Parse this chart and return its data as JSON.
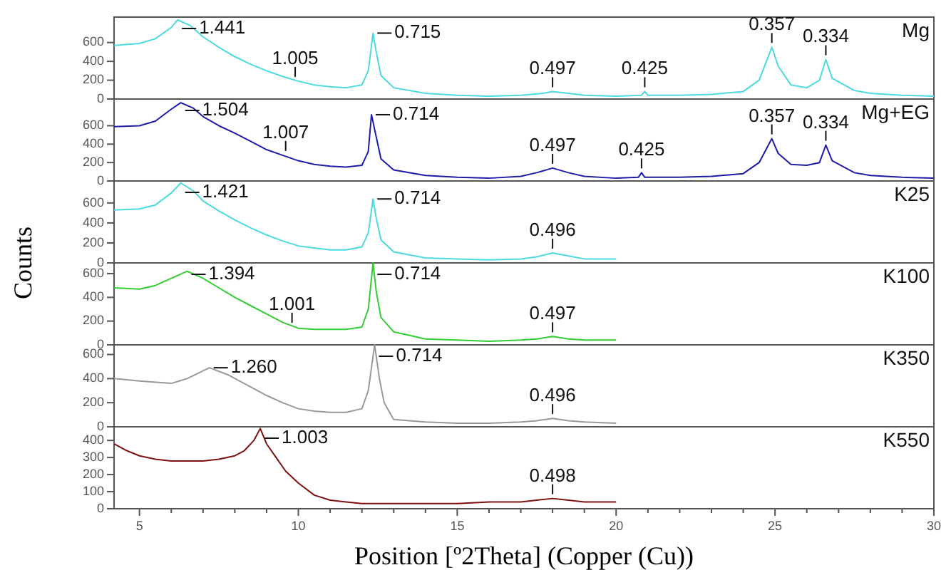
{
  "chart_data": [
    {
      "type": "line",
      "xlim": [
        4.2,
        30
      ],
      "ylim": [
        0,
        870
      ],
      "yticks": [
        0,
        200,
        400,
        600
      ],
      "tick_labels": "y",
      "series": [
        {
          "name": "Mg",
          "color": "#4dd9e0",
          "x": [
            4.2,
            5,
            5.5,
            6,
            6.2,
            6.6,
            7,
            7.5,
            8,
            8.5,
            9,
            9.5,
            10,
            10.5,
            11,
            11.5,
            12,
            12.2,
            12.35,
            12.45,
            12.6,
            13,
            14,
            15,
            16,
            17,
            17.7,
            18,
            18.5,
            19,
            20,
            20.8,
            20.9,
            21,
            22,
            23,
            24,
            24.5,
            24.9,
            25.1,
            25.5,
            26,
            26.4,
            26.6,
            26.8,
            27.5,
            28,
            29,
            30
          ],
          "values": [
            570,
            590,
            640,
            760,
            840,
            780,
            660,
            550,
            450,
            370,
            300,
            240,
            190,
            150,
            130,
            120,
            150,
            300,
            700,
            500,
            250,
            120,
            60,
            40,
            30,
            40,
            60,
            80,
            60,
            40,
            30,
            40,
            80,
            40,
            40,
            50,
            80,
            200,
            550,
            350,
            150,
            120,
            200,
            420,
            220,
            90,
            60,
            40,
            30
          ]
        }
      ],
      "annotations": [
        {
          "text": "1.441",
          "x": 6.2,
          "y": 840
        },
        {
          "text": "1.005",
          "x": 9.9,
          "y": 190
        },
        {
          "text": "0.715",
          "x": 12.35,
          "y": 700
        },
        {
          "text": "0.497",
          "x": 18,
          "y": 80
        },
        {
          "text": "0.425",
          "x": 20.9,
          "y": 80
        },
        {
          "text": "0.357",
          "x": 24.9,
          "y": 550
        },
        {
          "text": "0.334",
          "x": 26.6,
          "y": 420
        }
      ]
    },
    {
      "type": "line",
      "xlim": [
        4.2,
        30
      ],
      "ylim": [
        0,
        890
      ],
      "yticks": [
        0,
        200,
        400,
        600
      ],
      "tick_labels": "y",
      "series": [
        {
          "name": "Mg+EG",
          "color": "#1c1ca8",
          "x": [
            4.2,
            5,
            5.5,
            6,
            6.3,
            6.7,
            7,
            7.5,
            8,
            8.5,
            9,
            9.5,
            10,
            10.5,
            11,
            11.5,
            12,
            12.2,
            12.3,
            12.45,
            12.6,
            13,
            14,
            15,
            16,
            17,
            17.5,
            18,
            18.5,
            19,
            20,
            20.7,
            20.8,
            20.9,
            22,
            23,
            24,
            24.5,
            24.9,
            25.1,
            25.5,
            26,
            26.4,
            26.6,
            26.8,
            27.5,
            28,
            29,
            30
          ],
          "values": [
            590,
            600,
            650,
            780,
            850,
            790,
            700,
            600,
            520,
            430,
            340,
            280,
            220,
            180,
            160,
            150,
            170,
            320,
            720,
            480,
            240,
            120,
            60,
            40,
            30,
            50,
            90,
            140,
            90,
            50,
            30,
            40,
            90,
            40,
            40,
            50,
            80,
            200,
            460,
            300,
            180,
            170,
            200,
            390,
            220,
            90,
            60,
            40,
            30
          ]
        }
      ],
      "annotations": [
        {
          "text": "1.504",
          "x": 6.3,
          "y": 850
        },
        {
          "text": "1.007",
          "x": 9.6,
          "y": 280
        },
        {
          "text": "0.714",
          "x": 12.3,
          "y": 720
        },
        {
          "text": "0.497",
          "x": 18,
          "y": 140
        },
        {
          "text": "0.425",
          "x": 20.8,
          "y": 90
        },
        {
          "text": "0.357",
          "x": 24.9,
          "y": 460
        },
        {
          "text": "0.334",
          "x": 26.6,
          "y": 390
        }
      ]
    },
    {
      "type": "line",
      "xlim": [
        4.2,
        30
      ],
      "ylim": [
        0,
        820
      ],
      "yticks": [
        0,
        200,
        400,
        600
      ],
      "tick_labels": "y",
      "series": [
        {
          "name": "K25",
          "color": "#4dd9e0",
          "x": [
            4.2,
            5,
            5.5,
            6,
            6.3,
            6.7,
            7,
            7.5,
            8,
            8.5,
            9,
            9.5,
            10,
            10.5,
            11,
            11.5,
            12,
            12.2,
            12.35,
            12.45,
            12.6,
            13,
            14,
            15,
            16,
            17,
            17.5,
            18,
            18.5,
            19,
            20
          ],
          "values": [
            530,
            540,
            580,
            700,
            800,
            720,
            620,
            520,
            430,
            350,
            280,
            220,
            170,
            150,
            130,
            130,
            160,
            300,
            640,
            450,
            230,
            110,
            50,
            40,
            30,
            40,
            60,
            100,
            70,
            40,
            40
          ]
        }
      ],
      "annotations": [
        {
          "text": "1.421",
          "x": 6.3,
          "y": 800
        },
        {
          "text": "0.714",
          "x": 12.35,
          "y": 640
        },
        {
          "text": "0.496",
          "x": 18,
          "y": 100
        }
      ]
    },
    {
      "type": "line",
      "xlim": [
        4.2,
        30
      ],
      "ylim": [
        0,
        690
      ],
      "yticks": [
        0,
        200,
        400,
        600
      ],
      "tick_labels": "y",
      "ylabel": "Counts",
      "series": [
        {
          "name": "K100",
          "color": "#33cc33",
          "x": [
            4.2,
            5,
            5.5,
            6,
            6.5,
            7,
            7.5,
            8,
            8.5,
            9,
            9.5,
            10,
            10.5,
            11,
            11.5,
            12,
            12.2,
            12.35,
            12.45,
            12.6,
            13,
            14,
            15,
            16,
            17,
            17.5,
            18,
            18.5,
            19,
            20
          ],
          "values": [
            480,
            470,
            500,
            560,
            620,
            560,
            480,
            400,
            330,
            260,
            190,
            140,
            130,
            130,
            130,
            150,
            300,
            690,
            450,
            230,
            110,
            50,
            40,
            30,
            40,
            50,
            70,
            50,
            40,
            40
          ]
        }
      ],
      "annotations": [
        {
          "text": "1.394",
          "x": 6.5,
          "y": 620
        },
        {
          "text": "1.001",
          "x": 9.8,
          "y": 150
        },
        {
          "text": "0.714",
          "x": 12.35,
          "y": 690
        },
        {
          "text": "0.497",
          "x": 18,
          "y": 70
        }
      ]
    },
    {
      "type": "line",
      "xlim": [
        4.2,
        30
      ],
      "ylim": [
        0,
        680
      ],
      "yticks": [
        0,
        200,
        400,
        600
      ],
      "tick_labels": "y",
      "series": [
        {
          "name": "K350",
          "color": "#999999",
          "x": [
            4.2,
            5,
            6,
            6.5,
            7.2,
            7.8,
            8.5,
            9,
            9.5,
            10,
            10.5,
            11,
            11.5,
            12,
            12.2,
            12.4,
            12.55,
            12.7,
            13,
            14,
            15,
            16,
            17,
            17.5,
            18,
            18.5,
            19,
            20
          ],
          "values": [
            400,
            380,
            360,
            400,
            490,
            430,
            330,
            260,
            200,
            150,
            130,
            120,
            120,
            150,
            300,
            680,
            400,
            200,
            60,
            40,
            30,
            30,
            40,
            50,
            70,
            50,
            40,
            30
          ]
        }
      ],
      "annotations": [
        {
          "text": "1.260",
          "x": 7.2,
          "y": 490
        },
        {
          "text": "0.714",
          "x": 12.4,
          "y": 680
        },
        {
          "text": "0.496",
          "x": 18,
          "y": 70
        }
      ]
    },
    {
      "type": "line",
      "xlim": [
        4.2,
        30
      ],
      "ylim": [
        0,
        480
      ],
      "yticks": [
        0,
        100,
        200,
        300,
        400
      ],
      "xlabel": "Position [º2Theta] (Copper (Cu))",
      "xticks": [
        5,
        {
          "value": 6,
          "label": null
        },
        {
          "value": 7,
          "label": null
        },
        {
          "value": 8,
          "label": null
        },
        {
          "value": 9,
          "label": null
        },
        10,
        {
          "value": 11,
          "label": null
        },
        {
          "value": 12,
          "label": null
        },
        {
          "value": 13,
          "label": null
        },
        {
          "value": 14,
          "label": null
        },
        15,
        {
          "value": 16,
          "label": null
        },
        {
          "value": 17,
          "label": null
        },
        {
          "value": 18,
          "label": null
        },
        {
          "value": 19,
          "label": null
        },
        20,
        {
          "value": 21,
          "label": null
        },
        {
          "value": 22,
          "label": null
        },
        {
          "value": 23,
          "label": null
        },
        {
          "value": 24,
          "label": null
        },
        25,
        {
          "value": 26,
          "label": null
        },
        {
          "value": 27,
          "label": null
        },
        {
          "value": 28,
          "label": null
        },
        {
          "value": 29,
          "label": null
        },
        30
      ],
      "series": [
        {
          "name": "K550",
          "color": "#7b1111",
          "x": [
            4.2,
            4.6,
            5,
            5.5,
            6,
            6.5,
            7,
            7.5,
            8,
            8.3,
            8.6,
            8.8,
            9,
            9.3,
            9.6,
            10,
            10.5,
            11,
            11.5,
            12,
            13,
            14,
            15,
            16,
            17,
            17.5,
            18,
            18.5,
            19,
            20
          ],
          "values": [
            380,
            340,
            310,
            290,
            280,
            280,
            280,
            290,
            310,
            340,
            400,
            470,
            380,
            300,
            220,
            150,
            80,
            50,
            40,
            30,
            30,
            30,
            30,
            40,
            40,
            50,
            60,
            50,
            40,
            40
          ]
        }
      ],
      "annotations": [
        {
          "text": "1.003",
          "x": 8.8,
          "y": 470
        },
        {
          "text": "0.498",
          "x": 18,
          "y": 60
        }
      ]
    }
  ]
}
